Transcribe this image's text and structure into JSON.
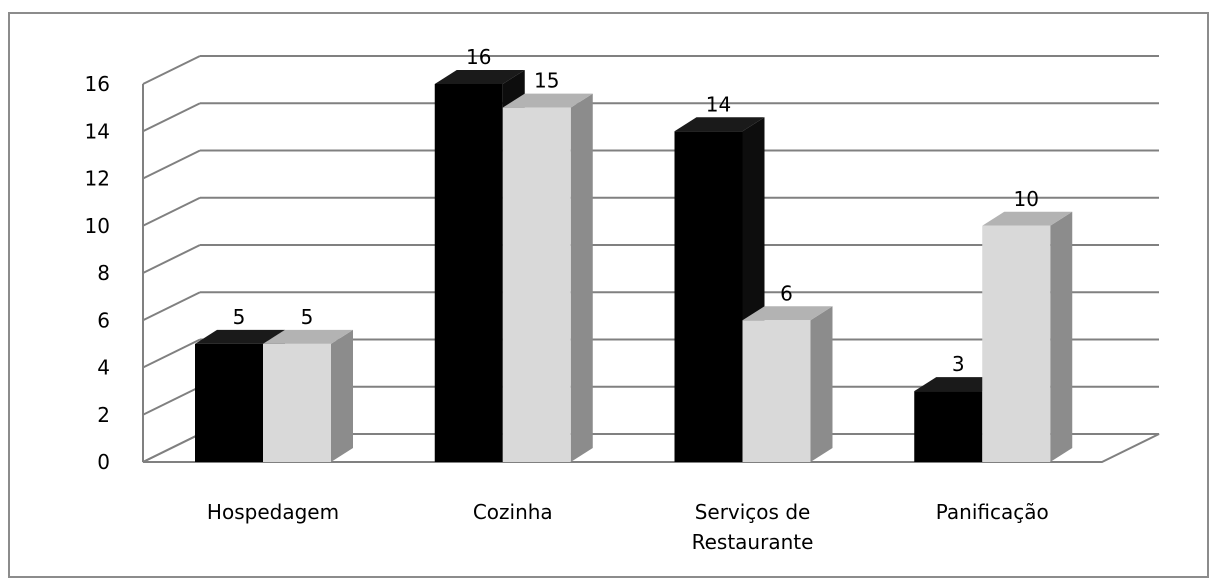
{
  "chart_data": {
    "type": "bar",
    "categories": [
      "Hospedagem",
      "Cozinha",
      "Serviços de Restaurante",
      "Panificação"
    ],
    "category_lines": [
      [
        "Hospedagem"
      ],
      [
        "Cozinha"
      ],
      [
        "Serviços de",
        "Restaurante"
      ],
      [
        "Panificação"
      ]
    ],
    "series": [
      {
        "values": [
          5,
          16,
          14,
          3
        ],
        "color": "#000000"
      },
      {
        "values": [
          5,
          15,
          6,
          10
        ],
        "color": "#d9d9d9"
      }
    ],
    "ylim": [
      0,
      16
    ],
    "yticks": [
      0,
      2,
      4,
      6,
      8,
      10,
      12,
      14,
      16
    ],
    "grid": true,
    "style": "3d-clustered-column",
    "legend": "none"
  }
}
